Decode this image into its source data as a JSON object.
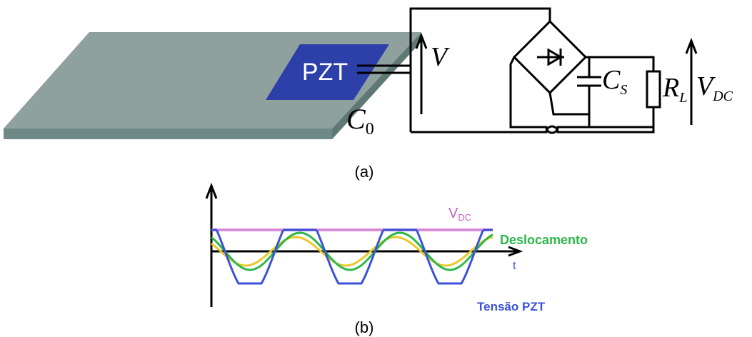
{
  "diagram_a": {
    "pzt_label": "PZT",
    "voltage": "V",
    "capacitance": {
      "base": "C",
      "sub": "0"
    },
    "storage_cap": {
      "base": "C",
      "sub": "S"
    },
    "load": {
      "base": "R",
      "sub": "L"
    },
    "output": {
      "base": "V",
      "sub": "DC"
    },
    "caption": "(a)"
  },
  "diagram_b": {
    "vdc": {
      "base": "V",
      "sub": "DC"
    },
    "displacement": "Deslocamento",
    "time_axis": "t",
    "pzt_voltage": "Tensão PZT",
    "caption": "(b)"
  }
}
